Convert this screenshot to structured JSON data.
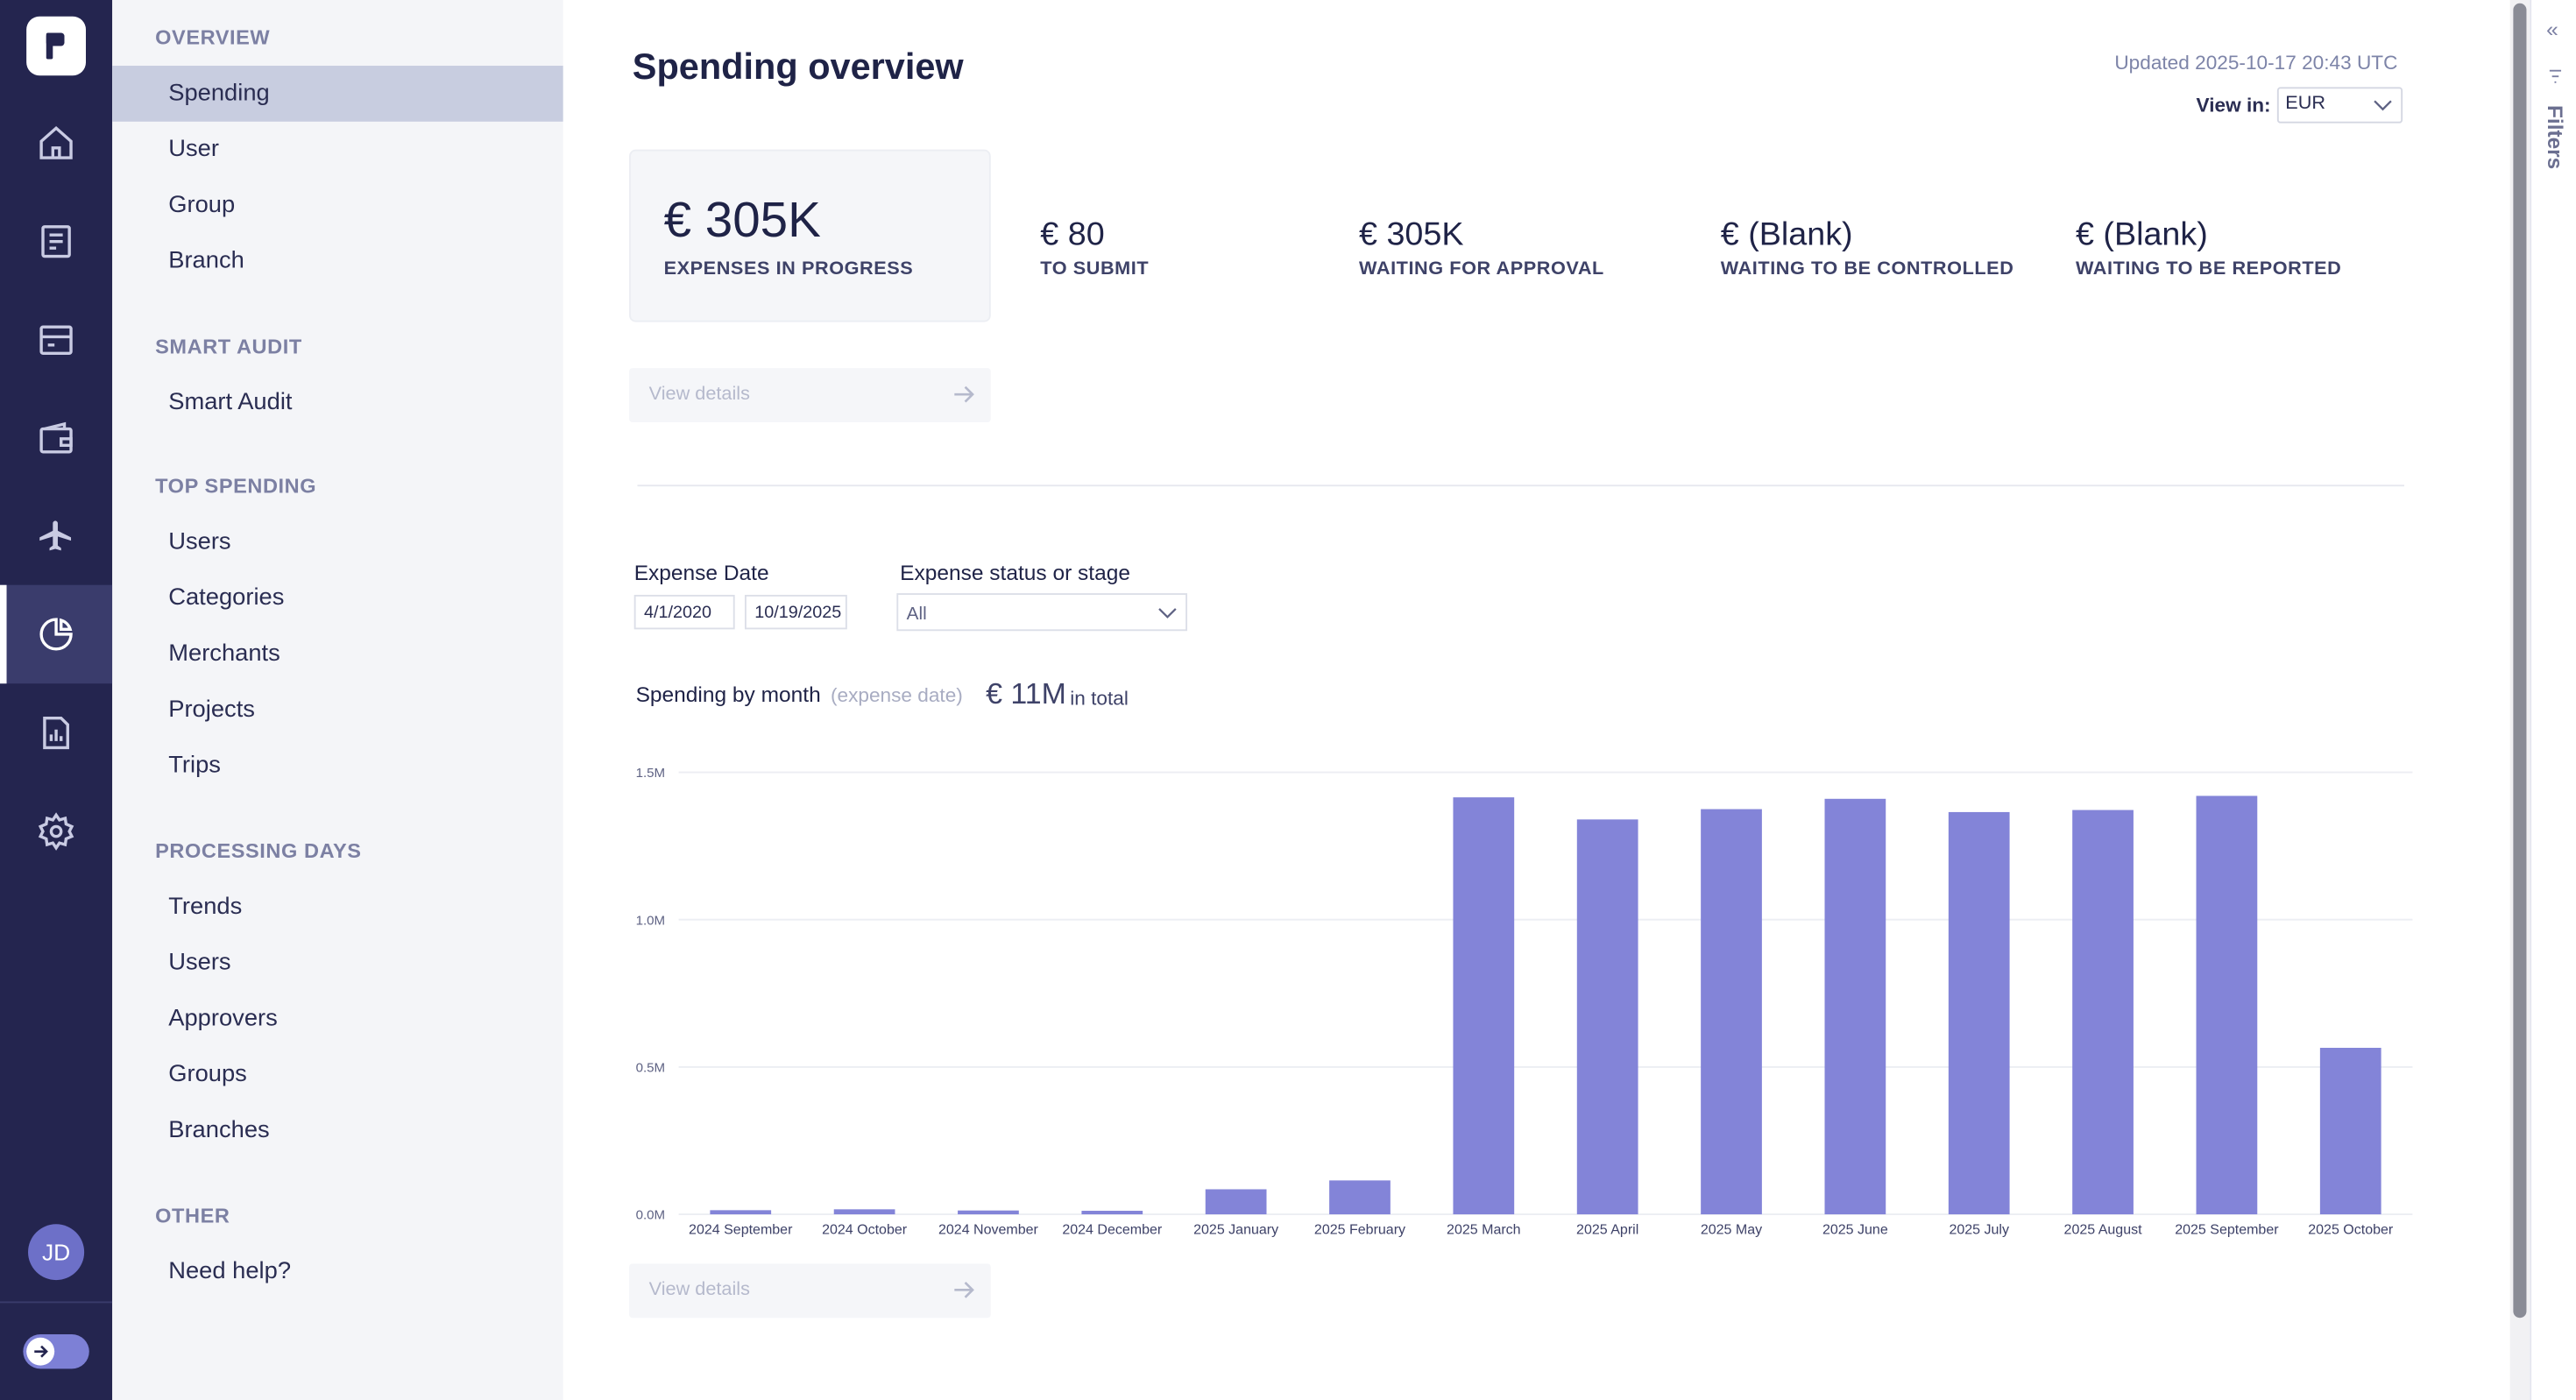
{
  "rail": {
    "avatar_initials": "JD",
    "items": [
      "home-icon",
      "expenses-icon",
      "cards-icon",
      "wallet-icon",
      "travel-icon",
      "analytics-icon",
      "reports-icon",
      "settings-icon"
    ],
    "active_item": "analytics-icon"
  },
  "sidenav": {
    "sections": [
      {
        "title": "OVERVIEW",
        "items": [
          "Spending",
          "User",
          "Group",
          "Branch"
        ]
      },
      {
        "title": "SMART AUDIT",
        "items": [
          "Smart Audit"
        ]
      },
      {
        "title": "TOP SPENDING",
        "items": [
          "Users",
          "Categories",
          "Merchants",
          "Projects",
          "Trips"
        ]
      },
      {
        "title": "PROCESSING DAYS",
        "items": [
          "Trends",
          "Users",
          "Approvers",
          "Groups",
          "Branches"
        ]
      },
      {
        "title": "OTHER",
        "items": [
          "Need help?"
        ]
      }
    ],
    "active_item": "Spending"
  },
  "header": {
    "title": "Spending overview",
    "updated": "Updated 2025-10-17 20:43 UTC",
    "view_in_label": "View in:",
    "currency": "EUR"
  },
  "kpis": [
    {
      "value": "€ 305K",
      "label": "EXPENSES IN PROGRESS"
    },
    {
      "value": "€ 80",
      "label": "TO SUBMIT"
    },
    {
      "value": "€ 305K",
      "label": "WAITING FOR APPROVAL"
    },
    {
      "value": "€ (Blank)",
      "label": "WAITING TO BE CONTROLLED"
    },
    {
      "value": "€ (Blank)",
      "label": "WAITING TO BE REPORTED"
    }
  ],
  "view_details_label": "View details",
  "filters": {
    "expense_date_label": "Expense Date",
    "date_from": "4/1/2020",
    "date_to": "10/19/2025",
    "status_label": "Expense status or stage",
    "status_value": "All",
    "panel_label": "Filters"
  },
  "chart_header": {
    "title": "Spending by month",
    "subtitle": "(expense date)",
    "total": "€ 11M",
    "total_note": "in total"
  },
  "colors": {
    "bar": "#8384d8",
    "rail": "#24254f",
    "sidenav": "#f4f5f8",
    "active_nav": "#c8cde0"
  },
  "chart_data": {
    "type": "bar",
    "title": "Spending by month",
    "categories": [
      "2024 September",
      "2024 October",
      "2024 November",
      "2024 December",
      "2025 January",
      "2025 February",
      "2025 March",
      "2025 April",
      "2025 May",
      "2025 June",
      "2025 July",
      "2025 August",
      "2025 September",
      "2025 October"
    ],
    "values": [
      14000,
      17000,
      13000,
      12000,
      85000,
      115000,
      1415000,
      1340000,
      1375000,
      1410000,
      1365000,
      1372000,
      1420000,
      565000
    ],
    "ylim": [
      0,
      1500000
    ],
    "yticks": [
      0,
      500000,
      1000000,
      1500000
    ],
    "ytick_labels": [
      "0.0M",
      "0.5M",
      "1.0M",
      "1.5M"
    ],
    "grid": true,
    "legend": "none"
  }
}
